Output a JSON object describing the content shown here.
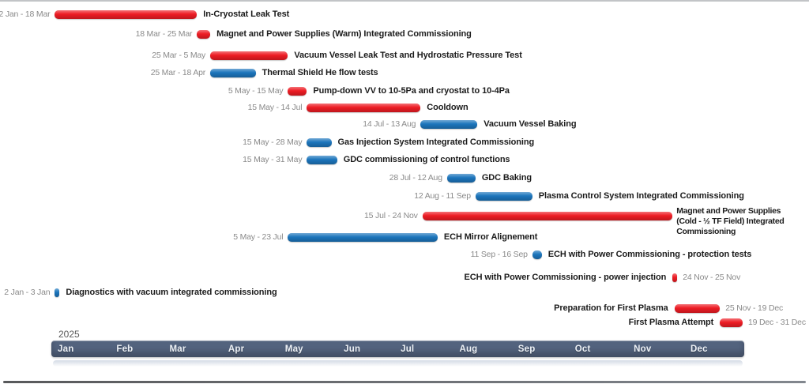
{
  "chart_data": {
    "type": "bar",
    "variant": "gantt-timeline",
    "x_axis": {
      "year": "2025",
      "months": [
        "Jan",
        "Feb",
        "Mar",
        "Apr",
        "May",
        "Jun",
        "Jul",
        "Aug",
        "Sep",
        "Oct",
        "Nov",
        "Dec"
      ],
      "range": [
        "1 Jan",
        "31 Dec"
      ]
    },
    "colors": {
      "red": "#ed1c24",
      "blue": "#1c75bc",
      "axis_bar": "#53637e"
    },
    "tasks": [
      {
        "label": "In-Cryostat Leak Test",
        "dates": "2 Jan - 18 Mar",
        "start": "2 Jan",
        "end": "18 Mar",
        "color": "red",
        "layout": "date-left"
      },
      {
        "label": "Magnet and Power Supplies (Warm) Integrated Commissioning",
        "dates": "18 Mar - 25 Mar",
        "start": "18 Mar",
        "end": "25 Mar",
        "color": "red",
        "layout": "date-left"
      },
      {
        "label": "Vacuum Vessel Leak Test and Hydrostatic Pressure Test",
        "dates": "25 Mar - 5 May",
        "start": "25 Mar",
        "end": "5 May",
        "color": "red",
        "layout": "date-left"
      },
      {
        "label": "Thermal Shield He flow tests",
        "dates": "25 Mar - 18 Apr",
        "start": "25 Mar",
        "end": "18 Apr",
        "color": "blue",
        "layout": "date-left"
      },
      {
        "label": "Pump-down VV to 10-5Pa and cryostat to 10-4Pa",
        "dates": "5 May - 15 May",
        "start": "5 May",
        "end": "15 May",
        "color": "red",
        "layout": "date-left"
      },
      {
        "label": "Cooldown",
        "dates": "15 May - 14 Jul",
        "start": "15 May",
        "end": "14 Jul",
        "color": "red",
        "layout": "date-left"
      },
      {
        "label": "Vacuum Vessel Baking",
        "dates": "14 Jul - 13 Aug",
        "start": "14 Jul",
        "end": "13 Aug",
        "color": "blue",
        "layout": "date-left"
      },
      {
        "label": "Gas Injection System Integrated Commissioning",
        "dates": "15 May - 28 May",
        "start": "15 May",
        "end": "28 May",
        "color": "blue",
        "layout": "date-left"
      },
      {
        "label": "GDC commissioning of control functions",
        "dates": "15 May - 31 May",
        "start": "15 May",
        "end": "31 May",
        "color": "blue",
        "layout": "date-left"
      },
      {
        "label": "GDC Baking",
        "dates": "28 Jul - 12 Aug",
        "start": "28 Jul",
        "end": "12 Aug",
        "color": "blue",
        "layout": "date-left"
      },
      {
        "label": "Plasma Control System Integrated Commissioning",
        "dates": "12 Aug - 11 Sep",
        "start": "12 Aug",
        "end": "11 Sep",
        "color": "blue",
        "layout": "date-left"
      },
      {
        "label": "Magnet and Power Supplies (Cold - ½ TF Field) Integrated Commissioning",
        "label_lines": [
          "Magnet and Power Supplies",
          "(Cold - ½ TF Field) Integrated",
          "Commissioning"
        ],
        "dates": "15 Jul - 24 Nov",
        "start": "15 Jul",
        "end": "24 Nov",
        "color": "red",
        "layout": "date-left"
      },
      {
        "label": "ECH Mirror Alignement",
        "dates": "5 May - 23 Jul",
        "start": "5 May",
        "end": "23 Jul",
        "color": "blue",
        "layout": "date-left"
      },
      {
        "label": "ECH with Power Commissioning - protection tests",
        "dates": "11 Sep - 16 Sep",
        "start": "11 Sep",
        "end": "16 Sep",
        "color": "blue",
        "layout": "date-left"
      },
      {
        "label": "ECH with Power Commissioning - power injection",
        "dates": "24 Nov - 25 Nov",
        "start": "24 Nov",
        "end": "25 Nov",
        "color": "red",
        "layout": "label-left"
      },
      {
        "label": "Diagnostics with vacuum integrated commissioning",
        "dates": "2 Jan - 3 Jan",
        "start": "2 Jan",
        "end": "3 Jan",
        "color": "blue",
        "layout": "date-left"
      },
      {
        "label": "Preparation for First Plasma",
        "dates": "25 Nov - 19 Dec",
        "start": "25 Nov",
        "end": "19 Dec",
        "color": "red",
        "layout": "label-left"
      },
      {
        "label": "First Plasma Attempt",
        "dates": "19 Dec - 31 Dec",
        "start": "19 Dec",
        "end": "31 Dec",
        "color": "red",
        "layout": "label-left"
      }
    ]
  }
}
